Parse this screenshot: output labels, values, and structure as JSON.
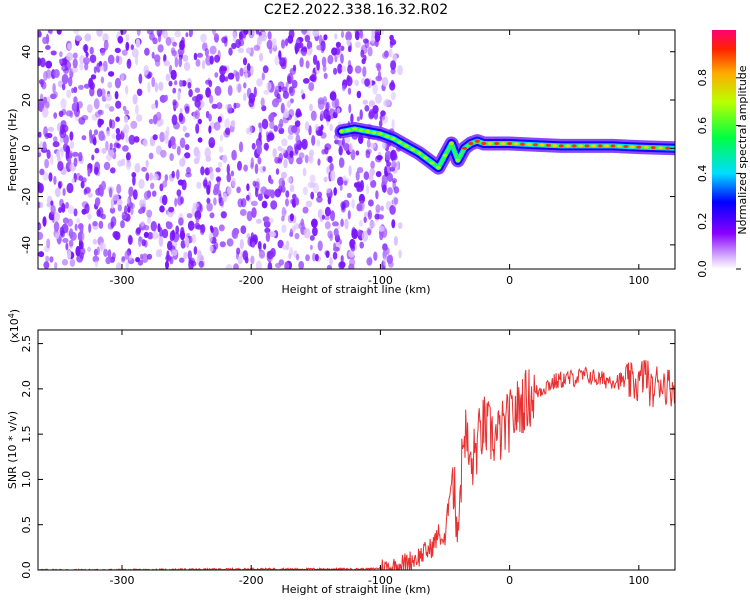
{
  "figure": {
    "title": "C2E2.2022.338.16.32.R02"
  },
  "chart_data": [
    {
      "type": "heatmap",
      "xlabel": "Height of straight line (km)",
      "ylabel": "Frequency (Hz)",
      "xlim": [
        -365,
        128
      ],
      "ylim": [
        -50,
        49
      ],
      "xticks": [
        -300,
        -200,
        -100,
        0,
        100
      ],
      "yticks": [
        -40,
        -20,
        0,
        20,
        40
      ],
      "noise_region_x": [
        -365,
        -100
      ],
      "signal_trace": {
        "x": [
          -130,
          -120,
          -110,
          -100,
          -90,
          -80,
          -70,
          -60,
          -55,
          -50,
          -45,
          -40,
          -35,
          -30,
          -25,
          -20,
          -10,
          0,
          20,
          40,
          60,
          80,
          100,
          128
        ],
        "y": [
          7,
          8,
          7,
          6,
          4,
          1,
          -2,
          -6,
          -8,
          -3,
          2,
          -5,
          0,
          2,
          3,
          2,
          2,
          2,
          1.5,
          1,
          1,
          1,
          0.5,
          0
        ]
      },
      "colorbar": {
        "label": "Normalized spectral amplitude",
        "range": [
          0,
          1
        ],
        "ticks": [
          "0.0",
          "0.2",
          "0.4",
          "0.6",
          "0.8"
        ]
      }
    },
    {
      "type": "line",
      "xlabel": "Height of straight line (km)",
      "ylabel": "SNR (10 * v/v)",
      "scale_label": "(x10",
      "scale_exp": "4",
      "scale_close": ")",
      "xlim": [
        -365,
        128
      ],
      "ylim": [
        0,
        2.65
      ],
      "xticks": [
        -300,
        -200,
        -100,
        0,
        100
      ],
      "yticks": [
        "0.0",
        "0.5",
        "1.0",
        "1.5",
        "2.0",
        "2.5"
      ],
      "series": [
        {
          "color": "#e83030",
          "x": [
            -365,
            -300,
            -200,
            -110,
            -100,
            -90,
            -80,
            -70,
            -60,
            -55,
            -50,
            -45,
            -40,
            -35,
            -30,
            -25,
            -20,
            -15,
            -10,
            -5,
            0,
            5,
            10,
            15,
            20,
            25,
            30,
            40,
            50,
            60,
            70,
            80,
            90,
            100,
            105,
            110,
            115,
            120,
            128
          ],
          "y": [
            0.0,
            0.0,
            0.01,
            0.01,
            0.02,
            0.03,
            0.08,
            0.15,
            0.25,
            0.4,
            0.3,
            1.1,
            0.5,
            1.6,
            1.1,
            1.4,
            1.6,
            1.5,
            1.45,
            1.55,
            1.65,
            1.75,
            1.85,
            1.9,
            1.95,
            2.0,
            2.05,
            2.1,
            2.12,
            2.15,
            2.1,
            2.1,
            2.08,
            2.05,
            2.2,
            1.95,
            2.1,
            2.05,
            2.0
          ]
        }
      ]
    }
  ]
}
